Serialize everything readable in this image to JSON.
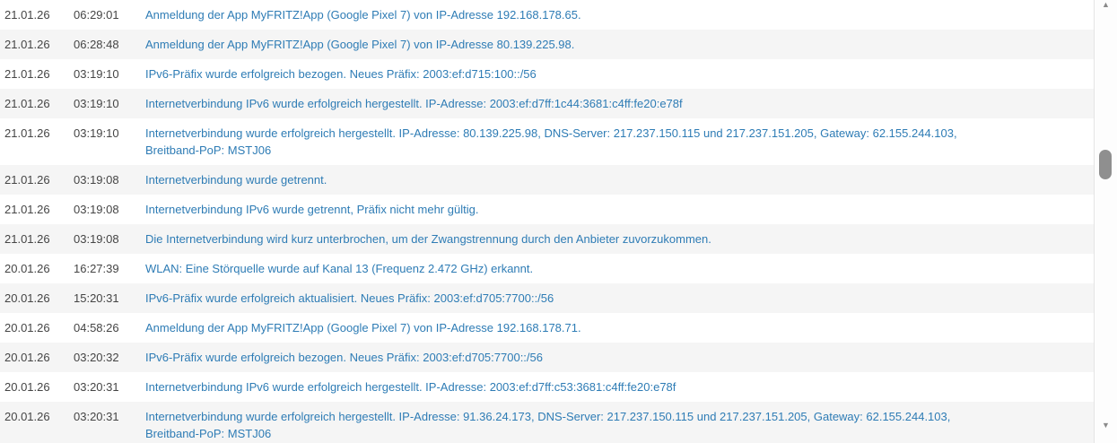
{
  "log": {
    "entries": [
      {
        "date": "21.01.26",
        "time": "06:29:01",
        "message": "Anmeldung der App MyFRITZ!App (Google Pixel 7) von IP-Adresse 192.168.178.65."
      },
      {
        "date": "21.01.26",
        "time": "06:28:48",
        "message": "Anmeldung der App MyFRITZ!App (Google Pixel 7) von IP-Adresse 80.139.225.98."
      },
      {
        "date": "21.01.26",
        "time": "03:19:10",
        "message": "IPv6-Präfix wurde erfolgreich bezogen. Neues Präfix: 2003:ef:d715:100::/56"
      },
      {
        "date": "21.01.26",
        "time": "03:19:10",
        "message": "Internetverbindung IPv6 wurde erfolgreich hergestellt. IP-Adresse: 2003:ef:d7ff:1c44:3681:c4ff:fe20:e78f"
      },
      {
        "date": "21.01.26",
        "time": "03:19:10",
        "message": "Internetverbindung wurde erfolgreich hergestellt. IP-Adresse: 80.139.225.98, DNS-Server: 217.237.150.115 und 217.237.151.205, Gateway: 62.155.244.103,\nBreitband-PoP: MSTJ06"
      },
      {
        "date": "21.01.26",
        "time": "03:19:08",
        "message": "Internetverbindung wurde getrennt."
      },
      {
        "date": "21.01.26",
        "time": "03:19:08",
        "message": "Internetverbindung IPv6 wurde getrennt, Präfix nicht mehr gültig."
      },
      {
        "date": "21.01.26",
        "time": "03:19:08",
        "message": "Die Internetverbindung wird kurz unterbrochen, um der Zwangstrennung durch den Anbieter zuvorzukommen."
      },
      {
        "date": "20.01.26",
        "time": "16:27:39",
        "message": "WLAN: Eine Störquelle wurde auf Kanal 13 (Frequenz 2.472 GHz) erkannt."
      },
      {
        "date": "20.01.26",
        "time": "15:20:31",
        "message": "IPv6-Präfix wurde erfolgreich aktualisiert. Neues Präfix: 2003:ef:d705:7700::/56"
      },
      {
        "date": "20.01.26",
        "time": "04:58:26",
        "message": "Anmeldung der App MyFRITZ!App (Google Pixel 7) von IP-Adresse 192.168.178.71."
      },
      {
        "date": "20.01.26",
        "time": "03:20:32",
        "message": "IPv6-Präfix wurde erfolgreich bezogen. Neues Präfix: 2003:ef:d705:7700::/56"
      },
      {
        "date": "20.01.26",
        "time": "03:20:31",
        "message": "Internetverbindung IPv6 wurde erfolgreich hergestellt. IP-Adresse: 2003:ef:d7ff:c53:3681:c4ff:fe20:e78f"
      },
      {
        "date": "20.01.26",
        "time": "03:20:31",
        "message": "Internetverbindung wurde erfolgreich hergestellt. IP-Adresse: 91.36.24.173, DNS-Server: 217.237.150.115 und 217.237.151.205, Gateway: 62.155.244.103,\nBreitband-PoP: MSTJ06"
      }
    ]
  },
  "scrollbar": {
    "up_icon": "▲",
    "down_icon": "▼"
  },
  "colors": {
    "link_text": "#2e7cb5",
    "meta_text": "#454545",
    "row_bg": "#ffffff",
    "row_alt_bg": "#f5f5f5",
    "scrollbar_thumb": "#8f8f8f",
    "scrollbar_arrow": "#8a8a8a"
  }
}
